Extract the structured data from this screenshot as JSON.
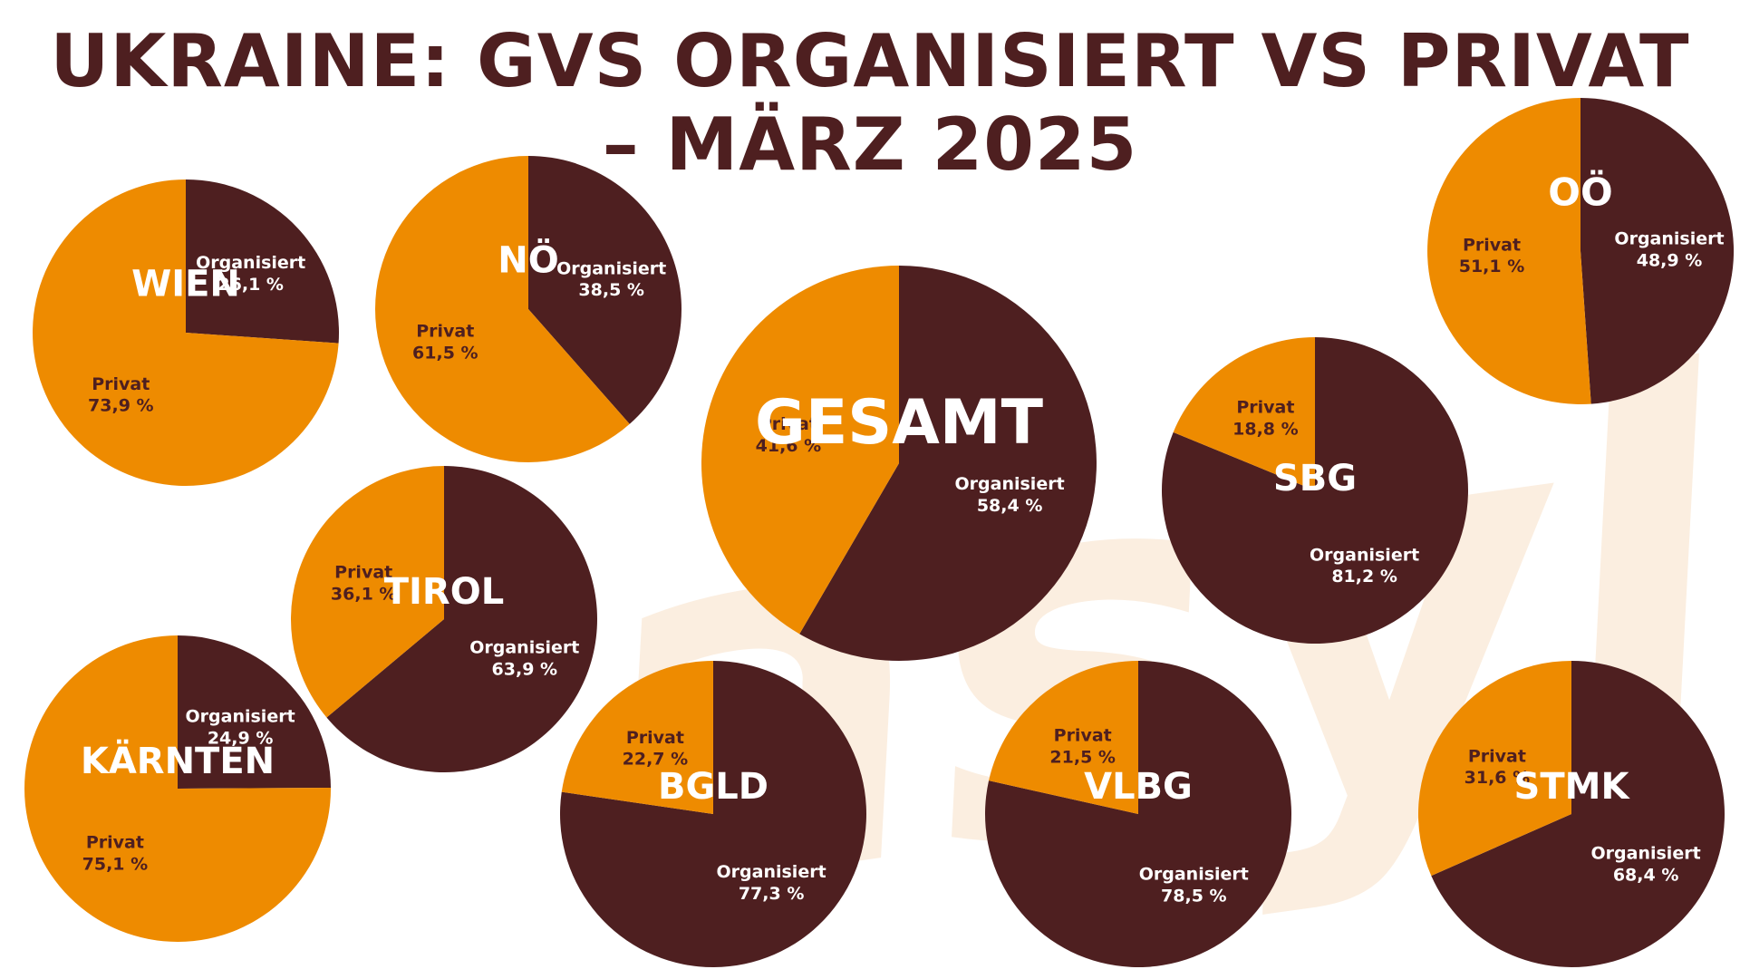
{
  "title": {
    "line1": "UKRAINE: GVS ORGANISIERT VS PRIVAT",
    "line2": "– MÄRZ 2025"
  },
  "watermark": "asyl",
  "colors": {
    "organisiert": "#4e1f20",
    "privat": "#ee8b00",
    "title": "#4e1f20",
    "watermark": "#fbeee0"
  },
  "chart_data": {
    "type": "pie",
    "title": "UKRAINE: GVS ORGANISIERT VS PRIVAT – MÄRZ 2025",
    "categories": [
      "Organisiert",
      "Privat"
    ],
    "pies": [
      {
        "name": "WIEN",
        "values": {
          "Organisiert": 26.1,
          "Privat": 73.9
        },
        "labels": {
          "Organisiert": "26,1 %",
          "Privat": "73,9 %"
        }
      },
      {
        "name": "NÖ",
        "values": {
          "Organisiert": 38.5,
          "Privat": 61.5
        },
        "labels": {
          "Organisiert": "38,5 %",
          "Privat": "61,5 %"
        }
      },
      {
        "name": "GESAMT",
        "values": {
          "Organisiert": 58.4,
          "Privat": 41.6
        },
        "labels": {
          "Organisiert": "58,4 %",
          "Privat": "41,6 %"
        }
      },
      {
        "name": "SBG",
        "values": {
          "Organisiert": 81.2,
          "Privat": 18.8
        },
        "labels": {
          "Organisiert": "81,2 %",
          "Privat": "18,8 %"
        }
      },
      {
        "name": "OÖ",
        "values": {
          "Organisiert": 48.9,
          "Privat": 51.1
        },
        "labels": {
          "Organisiert": "48,9 %",
          "Privat": "51,1 %"
        }
      },
      {
        "name": "TIROL",
        "values": {
          "Organisiert": 63.9,
          "Privat": 36.1
        },
        "labels": {
          "Organisiert": "63,9 %",
          "Privat": "36,1 %"
        }
      },
      {
        "name": "KÄRNTEN",
        "values": {
          "Organisiert": 24.9,
          "Privat": 75.1
        },
        "labels": {
          "Organisiert": "24,9 %",
          "Privat": "75,1 %"
        }
      },
      {
        "name": "BGLD",
        "values": {
          "Organisiert": 77.3,
          "Privat": 22.7
        },
        "labels": {
          "Organisiert": "77,3 %",
          "Privat": "22,7 %"
        }
      },
      {
        "name": "VLBG",
        "values": {
          "Organisiert": 78.5,
          "Privat": 21.5
        },
        "labels": {
          "Organisiert": "78,5 %",
          "Privat": "21,5 %"
        }
      },
      {
        "name": "STMK",
        "values": {
          "Organisiert": 68.4,
          "Privat": 31.6
        },
        "labels": {
          "Organisiert": "68,4 %",
          "Privat": "31,6 %"
        }
      }
    ]
  }
}
